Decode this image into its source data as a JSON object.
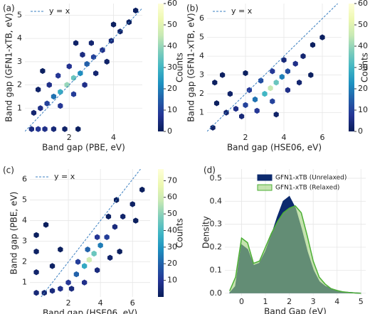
{
  "chart_data": [
    {
      "type": "hexbin",
      "label": "(a)",
      "xlabel": "Band gap (PBE, eV)",
      "ylabel": "Band gap (GFN1-xTB, eV)",
      "xlim": [
        0,
        5.3
      ],
      "ylim": [
        0,
        5.5
      ],
      "xticks": [
        2,
        4
      ],
      "yticks": [
        1,
        2,
        3,
        4,
        5
      ],
      "grid": true,
      "reference_line": {
        "name": "y = x",
        "color": "#3a7fc0"
      },
      "colormap": [
        "#081d58",
        "#253494",
        "#225ea8",
        "#1d91c0",
        "#41b6c4",
        "#7fcdbb",
        "#c7e9b4",
        "#edf8b1",
        "#ffffd9"
      ],
      "colorbar": {
        "label": "Counts",
        "lim": [
          0,
          60
        ],
        "ticks": [
          0,
          10,
          20,
          30,
          40,
          50,
          60
        ]
      },
      "x": [
        0.3,
        0.6,
        0.9,
        1.3,
        1.8,
        2.4,
        0.4,
        0.7,
        1.0,
        1.3,
        1.6,
        1.9,
        2.2,
        2.5,
        2.8,
        3.1,
        3.5,
        3.9,
        4.3,
        4.7,
        5.0,
        1.1,
        1.5,
        2.0,
        2.6,
        3.0,
        1.6,
        2.2,
        2.7,
        3.2,
        0.6,
        0.8,
        3.7,
        4.0,
        2.3
      ],
      "y": [
        0.1,
        0.1,
        0.1,
        0.1,
        0.1,
        0.1,
        0.8,
        1.0,
        1.2,
        1.5,
        1.7,
        2.0,
        2.3,
        2.5,
        2.9,
        3.2,
        3.5,
        3.9,
        4.3,
        4.7,
        5.2,
        2.0,
        2.4,
        2.8,
        3.3,
        3.8,
        1.1,
        1.6,
        2.0,
        2.5,
        1.8,
        2.6,
        3.0,
        4.6,
        3.8
      ],
      "counts": [
        5,
        8,
        6,
        4,
        2,
        1,
        3,
        6,
        10,
        18,
        28,
        40,
        35,
        22,
        15,
        10,
        6,
        4,
        2,
        1,
        1,
        6,
        8,
        7,
        5,
        3,
        8,
        9,
        6,
        3,
        2,
        1,
        2,
        1,
        2
      ]
    },
    {
      "type": "hexbin",
      "label": "(b)",
      "xlabel": "Band gap (HSE06, eV)",
      "ylabel": "Band gap (GFN1-xTB, eV)",
      "xlim": [
        0,
        7
      ],
      "ylim": [
        0,
        6.8
      ],
      "xticks": [
        2,
        4,
        6
      ],
      "yticks": [
        1,
        2,
        3,
        4,
        5,
        6
      ],
      "grid": true,
      "reference_line": {
        "name": "y = x",
        "color": "#3a7fc0"
      },
      "colormap": [
        "#081d58",
        "#253494",
        "#225ea8",
        "#1d91c0",
        "#41b6c4",
        "#7fcdbb",
        "#c7e9b4",
        "#edf8b1",
        "#ffffd9"
      ],
      "colorbar": {
        "label": "Counts",
        "lim": [
          0,
          60
        ],
        "ticks": [
          0,
          10,
          20,
          30,
          40,
          50,
          60
        ]
      },
      "x": [
        0.3,
        0.5,
        0.4,
        1.0,
        1.5,
        2.0,
        2.5,
        3.0,
        3.3,
        3.6,
        3.9,
        4.2,
        4.6,
        5.0,
        5.5,
        2.2,
        2.8,
        3.4,
        4.0,
        1.8,
        2.6,
        3.4,
        4.2,
        4.8,
        5.4,
        1.2,
        0.8,
        2.0,
        6.0,
        3.6
      ],
      "y": [
        0.2,
        1.5,
        2.6,
        1.0,
        1.2,
        1.4,
        1.7,
        2.0,
        2.3,
        2.6,
        2.9,
        3.2,
        3.6,
        4.0,
        4.6,
        2.2,
        2.7,
        3.2,
        3.8,
        0.8,
        1.1,
        1.6,
        2.2,
        2.6,
        3.0,
        2.0,
        3.0,
        3.1,
        5.0,
        0.9
      ],
      "counts": [
        2,
        1,
        1,
        3,
        6,
        10,
        18,
        30,
        45,
        35,
        20,
        12,
        6,
        3,
        1,
        8,
        12,
        8,
        4,
        4,
        8,
        10,
        6,
        3,
        1,
        2,
        1,
        1,
        1,
        2
      ]
    },
    {
      "type": "hexbin",
      "label": "(c)",
      "xlabel": "Band gap (HSE06, eV)",
      "ylabel": "Band gap (PBE, eV)",
      "xlim": [
        -0.4,
        7.1
      ],
      "ylim": [
        0.3,
        6.5
      ],
      "xticks": [
        2,
        4,
        6
      ],
      "yticks": [
        1,
        2,
        3,
        4,
        5,
        6
      ],
      "grid": true,
      "reference_line": {
        "name": "y = x",
        "color": "#3a7fc0"
      },
      "colormap": [
        "#081d58",
        "#253494",
        "#225ea8",
        "#1d91c0",
        "#41b6c4",
        "#7fcdbb",
        "#c7e9b4",
        "#edf8b1",
        "#ffffd9"
      ],
      "colorbar": {
        "label": "Counts",
        "lim": [
          0,
          77
        ],
        "ticks": [
          10,
          20,
          30,
          40,
          50,
          60,
          70
        ]
      },
      "x": [
        0.0,
        0.0,
        0.0,
        0.0,
        0.5,
        1.0,
        1.5,
        2.0,
        2.5,
        3.0,
        3.3,
        3.6,
        4.0,
        4.4,
        4.9,
        5.4,
        6.0,
        6.6,
        2.6,
        3.2,
        3.8,
        2.2,
        3.0,
        3.8,
        4.6,
        5.2,
        1.0,
        1.5,
        4.5,
        5.0,
        6.2,
        0.6
      ],
      "y": [
        0.5,
        1.5,
        2.5,
        3.3,
        0.5,
        0.6,
        0.7,
        1.0,
        1.4,
        1.8,
        2.1,
        2.4,
        2.8,
        3.2,
        3.7,
        4.2,
        4.8,
        5.5,
        2.0,
        2.6,
        3.2,
        0.7,
        1.0,
        1.6,
        2.2,
        2.5,
        1.8,
        2.6,
        4.2,
        5.0,
        4.0,
        3.8
      ],
      "counts": [
        5,
        3,
        2,
        1,
        4,
        6,
        8,
        10,
        20,
        35,
        60,
        45,
        25,
        12,
        6,
        3,
        2,
        1,
        12,
        20,
        10,
        6,
        8,
        6,
        3,
        1,
        2,
        1,
        2,
        1,
        1,
        1
      ]
    },
    {
      "type": "kde",
      "label": "(d)",
      "xlabel": "Band Gap (eV)",
      "ylabel": "Density",
      "xlim": [
        -0.7,
        5.2
      ],
      "ylim": [
        -0.01,
        0.54
      ],
      "xticks": [
        0,
        1,
        2,
        3,
        4,
        5
      ],
      "yticks": [
        {
          "value": 0,
          "label": "0.0"
        },
        0.1,
        0.2,
        0.3,
        0.4,
        0.5
      ],
      "grid": true,
      "legend": "upper right",
      "x": [
        -0.5,
        -0.25,
        0,
        0.25,
        0.5,
        0.75,
        1,
        1.25,
        1.5,
        1.75,
        2,
        2.25,
        2.5,
        2.75,
        3,
        3.25,
        3.5,
        3.75,
        4,
        4.25,
        4.5,
        4.75,
        5
      ],
      "series": [
        {
          "name": "GFN1-xTB (Unrelaxed)",
          "color": "#0c2a6e",
          "line_color": "#0c2a6e",
          "opacity": 1,
          "values": [
            0,
            0.03,
            0.21,
            0.19,
            0.12,
            0.13,
            0.18,
            0.25,
            0.33,
            0.4,
            0.42,
            0.37,
            0.28,
            0.18,
            0.1,
            0.05,
            0.03,
            0.02,
            0.01,
            0.005,
            0.003,
            0.001,
            0
          ]
        },
        {
          "name": "GFN1-xTB (Relaxed)",
          "color": "#9fd07a",
          "line_color": "#4caf35",
          "opacity": 0.6,
          "values": [
            0.01,
            0.07,
            0.24,
            0.22,
            0.13,
            0.14,
            0.2,
            0.26,
            0.31,
            0.35,
            0.37,
            0.38,
            0.35,
            0.25,
            0.14,
            0.07,
            0.04,
            0.02,
            0.012,
            0.006,
            0.003,
            0.001,
            0
          ]
        }
      ]
    }
  ]
}
